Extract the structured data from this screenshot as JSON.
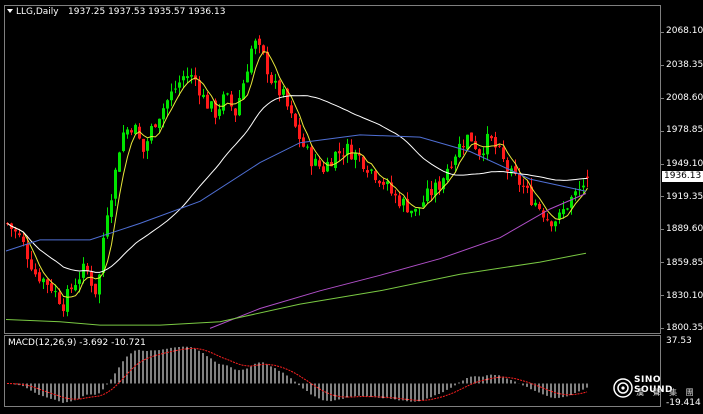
{
  "header": {
    "symbol": "LLG,Daily",
    "ohlc": "1937.25 1937.53 1935.57 1936.13"
  },
  "price_axis": {
    "labels": [
      "2068.10",
      "2038.35",
      "2008.60",
      "1978.85",
      "1949.10",
      "1919.35",
      "1889.60",
      "1859.85",
      "1830.10",
      "1800.35"
    ],
    "current_price": "1936.13"
  },
  "macd": {
    "label": "MACD(12,26,9) -3.692 -10.721",
    "axis_top": "37.53",
    "axis_bottom": "-19.414"
  },
  "logo": {
    "brand": "SINO SOUND",
    "sub": "漢 聲 集 團"
  },
  "colors": {
    "bull": "#00e400",
    "bear": "#ff1a1a",
    "ma_fast": "#e8e83a",
    "ma_mid": "#ffffff",
    "ma_slow": "#4f6fd4",
    "ma_purple": "#b04fc8",
    "ma_green": "#7ac943",
    "macd_hist": "#ffffff",
    "macd_signal": "#ff2020"
  },
  "chart_data": {
    "type": "candlestick",
    "title": "LLG,Daily",
    "ylim": [
      1800.35,
      2068.1
    ],
    "indicator": "MACD(12,26,9)",
    "macd_ylim": [
      -19.414,
      37.53
    ],
    "last_close": 1936.13
  }
}
